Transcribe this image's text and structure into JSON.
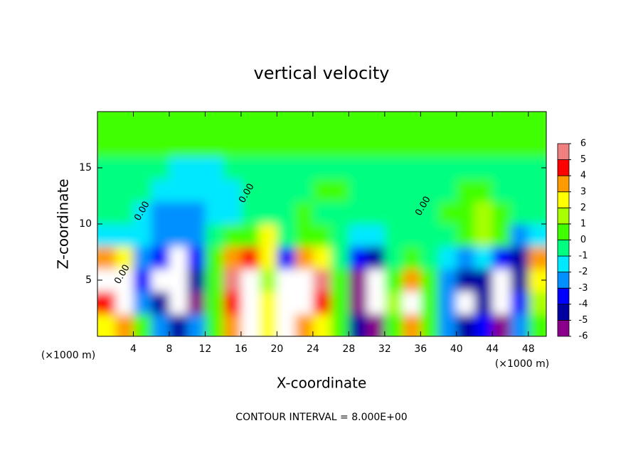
{
  "chart_data": {
    "type": "contour",
    "title": "vertical velocity",
    "xlabel": "X-coordinate",
    "ylabel": "Z-coordinate",
    "xunit": "(×1000 m)",
    "yunit": "(×1000 m)",
    "footer": "CONTOUR INTERVAL = 8.000E+00",
    "xlim": [
      0,
      50
    ],
    "xticks": [
      4,
      8,
      12,
      16,
      20,
      24,
      28,
      32,
      36,
      40,
      44,
      48
    ],
    "ylim": [
      0,
      20
    ],
    "yticks": [
      5,
      10,
      15
    ],
    "contour_labels": [
      "0.00",
      "0.00",
      "0.00",
      "0.00"
    ],
    "clim": [
      -6,
      6
    ],
    "cticks": [
      -6,
      -5,
      -4,
      -3,
      -2,
      -1,
      0,
      1,
      2,
      3,
      4,
      5,
      6
    ],
    "colors": [
      "#8a008a",
      "#0000a0",
      "#0000ff",
      "#0090ff",
      "#00e8ff",
      "#00ff80",
      "#40ff00",
      "#a8ff00",
      "#ffff00",
      "#ff9a00",
      "#ff0000",
      "#f08080"
    ],
    "out_of_range_color": "#ffffff",
    "field": {
      "x": [
        1,
        3,
        5,
        7,
        9,
        11,
        13,
        15,
        17,
        19,
        21,
        23,
        25,
        27,
        29,
        31,
        33,
        35,
        37,
        39,
        41,
        43,
        45,
        47,
        49
      ],
      "z": [
        1,
        3,
        5,
        7,
        9,
        11,
        13,
        15,
        17,
        19
      ],
      "values": [
        [
          3,
          4,
          0.5,
          -2,
          -4,
          -2,
          1,
          4,
          8,
          3,
          -8,
          4,
          3,
          0.5,
          -4,
          -5,
          1,
          4,
          1,
          -2,
          -4,
          -3,
          -5,
          -2,
          0.5
        ],
        [
          5,
          8,
          -2,
          -4,
          -8,
          -5,
          1,
          5,
          8,
          3,
          -8,
          8,
          5,
          0.5,
          -5,
          -8,
          2,
          8,
          1,
          -2,
          -7,
          -4,
          -8,
          -3,
          2
        ],
        [
          8,
          7,
          -3,
          -7,
          -8,
          -4,
          1,
          6,
          8,
          2,
          -7,
          8,
          6,
          0.5,
          -6,
          -8,
          1,
          4,
          0.5,
          -2,
          -4,
          -4,
          -8,
          -4,
          3
        ],
        [
          4,
          3,
          -2,
          -3,
          -7,
          -3,
          0.5,
          4,
          5,
          3,
          -3,
          4,
          3,
          0,
          -3,
          -4,
          0,
          1,
          0,
          -1,
          -2,
          -1,
          -3,
          -4,
          4
        ],
        [
          -1,
          -1,
          -1,
          -2,
          -2.5,
          -2,
          0,
          0.5,
          0.5,
          3,
          0,
          1,
          0.5,
          0,
          -1,
          -1,
          0,
          0,
          0,
          0,
          0.5,
          1.5,
          0.5,
          -2,
          -1
        ],
        [
          0,
          -0.5,
          -1,
          -2,
          -2,
          -2,
          -1.5,
          -1,
          -0.5,
          0,
          0,
          0.5,
          0,
          0,
          0,
          0,
          0,
          0,
          0,
          0.5,
          1,
          1.5,
          1,
          0,
          0
        ],
        [
          0,
          0,
          -0.5,
          -1,
          -1.5,
          -1.5,
          -1.5,
          -1,
          -0.5,
          0,
          0,
          0,
          0.5,
          0.5,
          0,
          0,
          0,
          0,
          0,
          0,
          0.5,
          0.5,
          0,
          0,
          0
        ],
        [
          0,
          0,
          0,
          -0.5,
          -1,
          -1,
          -1,
          -0.5,
          0,
          0,
          0,
          0,
          0,
          0,
          0,
          0,
          0,
          0,
          0,
          0,
          0,
          0,
          0,
          0,
          0
        ],
        [
          0.3,
          0.3,
          0.3,
          0.3,
          0.3,
          0.3,
          0.3,
          0.3,
          0.3,
          0.3,
          0.3,
          0.3,
          0.3,
          0.3,
          0.3,
          0.3,
          0.3,
          0.3,
          0.3,
          0.3,
          0.3,
          0.3,
          0.3,
          0.3,
          0.3
        ],
        [
          0.3,
          0.3,
          0.3,
          0.3,
          0.3,
          0.3,
          0.3,
          0.3,
          0.3,
          0.3,
          0.3,
          0.3,
          0.3,
          0.3,
          0.3,
          0.3,
          0.3,
          0.3,
          0.3,
          0.3,
          0.3,
          0.3,
          0.3,
          0.3,
          0.3
        ]
      ]
    }
  }
}
